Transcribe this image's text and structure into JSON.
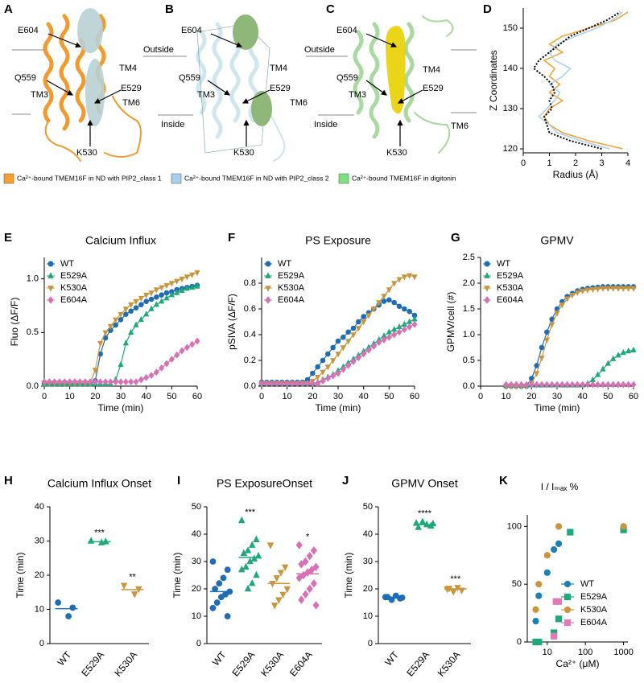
{
  "structures": [
    {
      "letter": "A",
      "labels": [
        "E604",
        "Q559",
        "TM3",
        "TM4",
        "E529",
        "TM6",
        "K530"
      ]
    },
    {
      "letter": "B",
      "labels": [
        "Outside",
        "E604",
        "TM4",
        "Q559",
        "TM3",
        "E529",
        "TM6",
        "Inside",
        "K530"
      ]
    },
    {
      "letter": "C",
      "labels": [
        "Outside",
        "E604",
        "TM4",
        "Q559",
        "TM3",
        "E529",
        "TM6",
        "Inside",
        "K530"
      ]
    }
  ],
  "structure_legend": [
    {
      "name": "Ca²⁺-bound TMEM16F in ND with PIP2_class 1",
      "color": "#f5a030"
    },
    {
      "name": "Ca²⁺-bound TMEM16F in ND with PIP2_class 2",
      "color": "#a8d0ec"
    },
    {
      "name": "Ca²⁺-bound TMEM16F in digitonin",
      "color": "#7fe07f"
    }
  ],
  "chart_data": [
    {
      "letter": "D",
      "type": "profile",
      "ylabel": "Z Coordinates",
      "xlabel": "Radius (Å)",
      "xlim": [
        0,
        4
      ],
      "xticks": [
        0,
        1,
        2,
        3,
        4
      ],
      "ylim": [
        119,
        155
      ],
      "yticks": [
        120,
        130,
        140,
        150
      ],
      "y": [
        120,
        122,
        124,
        126,
        128,
        130,
        132,
        134,
        136,
        138,
        140,
        142,
        144,
        146,
        148,
        150,
        152,
        154
      ],
      "series": [
        {
          "color": "#f5a030",
          "values": [
            3.8,
            2.5,
            1.5,
            1.0,
            0.8,
            1.0,
            1.5,
            1.0,
            1.4,
            1.0,
            1.2,
            0.8,
            1.5,
            1.0,
            1.5,
            2.5,
            3.5,
            4.0
          ]
        },
        {
          "color": "#a8d0ec",
          "values": [
            3.3,
            2.2,
            1.3,
            1.0,
            0.6,
            0.9,
            1.2,
            1.4,
            1.0,
            1.5,
            1.8,
            1.2,
            1.0,
            1.3,
            2.0,
            2.8,
            3.4,
            3.8
          ]
        },
        {
          "color": "#000000",
          "dash": true,
          "values": [
            3.0,
            1.8,
            1.0,
            0.9,
            0.8,
            1.1,
            1.0,
            1.2,
            1.1,
            0.8,
            0.4,
            0.6,
            1.0,
            1.4,
            1.8,
            2.5,
            3.2,
            3.7
          ]
        }
      ]
    },
    {
      "letter": "E",
      "type": "line",
      "title": "Calcium Influx",
      "ylabel": "Fluo (ΔF/F)",
      "xlabel": "Time (min)",
      "xlim": [
        0,
        60
      ],
      "xticks": [
        0,
        10,
        20,
        30,
        40,
        50,
        60
      ],
      "ylim": [
        0,
        1.2
      ],
      "yticks": [
        {
          "value": 0,
          "label": "0.0"
        },
        0.5,
        {
          "value": 1,
          "label": "1.0"
        }
      ],
      "legend": "upper left",
      "x": [
        0,
        2,
        4,
        6,
        8,
        10,
        12,
        14,
        16,
        18,
        20,
        22,
        24,
        26,
        28,
        30,
        32,
        34,
        36,
        38,
        40,
        42,
        44,
        46,
        48,
        50,
        52,
        54,
        56,
        58,
        60
      ],
      "series": [
        {
          "name": "WT",
          "color": "#1f6db5",
          "marker": "circle",
          "values": [
            0.02,
            0.02,
            0.02,
            0.02,
            0.02,
            0.02,
            0.02,
            0.02,
            0.02,
            0.02,
            0.05,
            0.3,
            0.45,
            0.52,
            0.57,
            0.62,
            0.67,
            0.7,
            0.73,
            0.76,
            0.79,
            0.81,
            0.83,
            0.85,
            0.87,
            0.88,
            0.9,
            0.91,
            0.92,
            0.93,
            0.94
          ]
        },
        {
          "name": "E529A",
          "color": "#1fa87a",
          "marker": "triangle-up",
          "values": [
            0.02,
            0.02,
            0.02,
            0.02,
            0.02,
            0.02,
            0.02,
            0.02,
            0.02,
            0.02,
            0.02,
            0.02,
            0.02,
            0.02,
            0.06,
            0.2,
            0.4,
            0.5,
            0.57,
            0.62,
            0.67,
            0.72,
            0.76,
            0.79,
            0.82,
            0.85,
            0.87,
            0.89,
            0.91,
            0.92,
            0.93
          ]
        },
        {
          "name": "K530A",
          "color": "#c9963f",
          "marker": "triangle-down",
          "values": [
            0.03,
            0.03,
            0.03,
            0.03,
            0.03,
            0.03,
            0.03,
            0.03,
            0.03,
            0.03,
            0.15,
            0.4,
            0.5,
            0.56,
            0.62,
            0.67,
            0.72,
            0.76,
            0.79,
            0.82,
            0.85,
            0.87,
            0.9,
            0.92,
            0.94,
            0.96,
            0.98,
            1.0,
            1.02,
            1.04,
            1.06
          ]
        },
        {
          "name": "E604A",
          "color": "#d770b5",
          "marker": "diamond",
          "values": [
            0.04,
            0.04,
            0.04,
            0.04,
            0.04,
            0.04,
            0.04,
            0.04,
            0.04,
            0.04,
            0.04,
            0.04,
            0.04,
            0.04,
            0.04,
            0.04,
            0.04,
            0.04,
            0.04,
            0.06,
            0.08,
            0.1,
            0.13,
            0.17,
            0.21,
            0.25,
            0.29,
            0.33,
            0.36,
            0.39,
            0.42
          ]
        }
      ]
    },
    {
      "letter": "F",
      "type": "line",
      "title": "PS Exposure",
      "ylabel": "pSIVA (ΔF/F)",
      "xlabel": "Time (min)",
      "xlim": [
        0,
        60
      ],
      "xticks": [
        0,
        10,
        20,
        30,
        40,
        50,
        60
      ],
      "ylim": [
        0,
        1.0
      ],
      "yticks": [
        {
          "value": 0,
          "label": "0.0"
        },
        0.2,
        0.4,
        0.6,
        0.8
      ],
      "legend": "upper left",
      "x": [
        0,
        2,
        4,
        6,
        8,
        10,
        12,
        14,
        16,
        18,
        20,
        22,
        24,
        26,
        28,
        30,
        32,
        34,
        36,
        38,
        40,
        42,
        44,
        46,
        48,
        50,
        52,
        54,
        56,
        58,
        60
      ],
      "series": [
        {
          "name": "WT",
          "color": "#1f6db5",
          "marker": "circle",
          "values": [
            0.03,
            0.03,
            0.03,
            0.03,
            0.03,
            0.03,
            0.03,
            0.03,
            0.03,
            0.05,
            0.1,
            0.15,
            0.2,
            0.25,
            0.3,
            0.35,
            0.38,
            0.42,
            0.45,
            0.5,
            0.54,
            0.57,
            0.6,
            0.63,
            0.66,
            0.67,
            0.65,
            0.62,
            0.6,
            0.58,
            0.55
          ]
        },
        {
          "name": "E529A",
          "color": "#1fa87a",
          "marker": "triangle-up",
          "values": [
            0.02,
            0.02,
            0.02,
            0.02,
            0.02,
            0.02,
            0.02,
            0.02,
            0.02,
            0.02,
            0.02,
            0.03,
            0.05,
            0.07,
            0.09,
            0.12,
            0.15,
            0.18,
            0.21,
            0.24,
            0.27,
            0.3,
            0.33,
            0.36,
            0.39,
            0.42,
            0.44,
            0.46,
            0.48,
            0.5,
            0.52
          ]
        },
        {
          "name": "K530A",
          "color": "#c9963f",
          "marker": "triangle-down",
          "values": [
            0.02,
            0.02,
            0.02,
            0.02,
            0.02,
            0.02,
            0.02,
            0.02,
            0.02,
            0.02,
            0.04,
            0.07,
            0.11,
            0.15,
            0.2,
            0.25,
            0.3,
            0.35,
            0.4,
            0.45,
            0.5,
            0.55,
            0.6,
            0.65,
            0.7,
            0.75,
            0.8,
            0.83,
            0.85,
            0.86,
            0.85
          ]
        },
        {
          "name": "E604A",
          "color": "#d770b5",
          "marker": "diamond",
          "values": [
            0.02,
            0.02,
            0.02,
            0.02,
            0.02,
            0.02,
            0.02,
            0.02,
            0.02,
            0.02,
            0.02,
            0.02,
            0.04,
            0.06,
            0.08,
            0.1,
            0.13,
            0.16,
            0.19,
            0.22,
            0.25,
            0.28,
            0.31,
            0.34,
            0.36,
            0.38,
            0.4,
            0.42,
            0.44,
            0.46,
            0.48
          ]
        }
      ]
    },
    {
      "letter": "G",
      "type": "line",
      "title": "GPMV",
      "ylabel": "GPMV/cell (#)",
      "xlabel": "Time (min)",
      "xlim": [
        0,
        60
      ],
      "xticks": [
        0,
        10,
        20,
        30,
        40,
        50,
        60
      ],
      "ylim": [
        0,
        2.5
      ],
      "yticks": [
        {
          "value": 0,
          "label": "0.0"
        },
        0.5,
        {
          "value": 1,
          "label": "1.0"
        },
        1.5,
        {
          "value": 2,
          "label": "2.0"
        },
        2.5
      ],
      "legend": "upper left",
      "x": [
        10,
        12,
        14,
        16,
        18,
        20,
        22,
        24,
        26,
        28,
        30,
        32,
        34,
        36,
        38,
        40,
        42,
        44,
        46,
        48,
        50,
        52,
        54,
        56,
        58,
        60
      ],
      "series": [
        {
          "name": "WT",
          "color": "#1f6db5",
          "marker": "circle",
          "values": [
            0,
            0,
            0,
            0,
            0,
            0.15,
            0.4,
            0.75,
            1.05,
            1.3,
            1.5,
            1.64,
            1.74,
            1.8,
            1.85,
            1.88,
            1.9,
            1.91,
            1.92,
            1.93,
            1.93,
            1.93,
            1.93,
            1.93,
            1.93,
            1.93
          ]
        },
        {
          "name": "E529A",
          "color": "#1fa87a",
          "marker": "triangle-up",
          "values": [
            0.02,
            0.02,
            0.02,
            0.02,
            0.02,
            0.02,
            0.02,
            0.02,
            0.02,
            0.02,
            0.02,
            0.02,
            0.02,
            0.02,
            0.02,
            0.02,
            0.05,
            0.12,
            0.22,
            0.33,
            0.44,
            0.53,
            0.6,
            0.65,
            0.68,
            0.7
          ]
        },
        {
          "name": "K530A",
          "color": "#c9963f",
          "marker": "triangle-down",
          "values": [
            0,
            0,
            0,
            0,
            0,
            0.05,
            0.25,
            0.55,
            0.9,
            1.2,
            1.42,
            1.58,
            1.7,
            1.77,
            1.82,
            1.85,
            1.87,
            1.88,
            1.89,
            1.9,
            1.9,
            1.9,
            1.9,
            1.9,
            1.9,
            1.9
          ]
        },
        {
          "name": "E604A",
          "color": "#d770b5",
          "marker": "diamond",
          "values": [
            0.03,
            0.03,
            0.03,
            0.03,
            0.03,
            0.03,
            0.03,
            0.03,
            0.03,
            0.03,
            0.03,
            0.03,
            0.03,
            0.03,
            0.03,
            0.03,
            0.03,
            0.03,
            0.03,
            0.03,
            0.03,
            0.03,
            0.03,
            0.03,
            0.03,
            0.03
          ]
        }
      ]
    },
    {
      "letter": "H",
      "type": "dot",
      "title": "Calcium Influx Onset",
      "ylabel": "Time (min)",
      "ylim": [
        0,
        40
      ],
      "yticks": [
        0,
        10,
        20,
        30,
        40
      ],
      "categories": [
        "WT",
        "E529A",
        "K530A"
      ],
      "colors": [
        "#1f6db5",
        "#1fa87a",
        "#c9963f"
      ],
      "markers": [
        "circle",
        "triangle-up",
        "triangle-down"
      ],
      "points": [
        [
          12,
          10.5,
          8
        ],
        [
          30,
          29.8,
          29.5
        ],
        [
          17,
          16,
          14.5
        ]
      ],
      "means": [
        10.2,
        29.8,
        15.8
      ],
      "annotations": [
        null,
        "***",
        "**"
      ]
    },
    {
      "letter": "I",
      "type": "dot",
      "title": "PS ExposureOnset",
      "ylabel": "Time (min)",
      "ylim": [
        0,
        50
      ],
      "yticks": [
        0,
        10,
        20,
        30,
        40,
        50
      ],
      "categories": [
        "WT",
        "E529A",
        "K530A",
        "E604A"
      ],
      "colors": [
        "#1f6db5",
        "#1fa87a",
        "#c9963f",
        "#d770b5"
      ],
      "markers": [
        "circle",
        "triangle-up",
        "triangle-down",
        "diamond"
      ],
      "points": [
        [
          30,
          27,
          24,
          22,
          20,
          19,
          18,
          17,
          15,
          13,
          10
        ],
        [
          45,
          38,
          36,
          34,
          33,
          32,
          31,
          30,
          28,
          27,
          25,
          22,
          20
        ],
        [
          36,
          28,
          26,
          24,
          22,
          20,
          18,
          16,
          14
        ],
        [
          36,
          34,
          32,
          30,
          29,
          28,
          27,
          26,
          25,
          24,
          22,
          20,
          18,
          16,
          14
        ]
      ],
      "means": [
        19,
        31.5,
        22,
        25.5
      ],
      "annotations": [
        null,
        "***",
        null,
        "*"
      ]
    },
    {
      "letter": "J",
      "type": "dot",
      "title": "GPMV Onset",
      "ylabel": "Time (min)",
      "ylim": [
        0,
        50
      ],
      "yticks": [
        0,
        10,
        20,
        30,
        40,
        50
      ],
      "categories": [
        "WT",
        "E529A",
        "K530A"
      ],
      "colors": [
        "#1f6db5",
        "#1fa87a",
        "#c9963f"
      ],
      "markers": [
        "circle",
        "triangle-up",
        "triangle-down"
      ],
      "points": [
        [
          17,
          16.5,
          17.5,
          16,
          17,
          16.8
        ],
        [
          44,
          43,
          43.5,
          44.5,
          42.5,
          43.8
        ],
        [
          20,
          19.5,
          20.5,
          19,
          20.2
        ]
      ],
      "means": [
        17,
        43.5,
        20
      ],
      "annotations": [
        null,
        "****",
        "***"
      ]
    },
    {
      "letter": "K",
      "type": "scatter",
      "ylabel": "I / Iₘₐₓ %",
      "xlabel": "Ca²⁺ (μM)",
      "xscale": "log",
      "xlim": [
        3,
        1300
      ],
      "xticks": [
        10,
        100,
        1000
      ],
      "ylim": [
        0,
        110
      ],
      "yticks": [
        0,
        50,
        100
      ],
      "legend": "lower right",
      "series": [
        {
          "name": "WT",
          "color": "#1f7fb5",
          "marker": "circle",
          "x": [
            5,
            6,
            10,
            15,
            20,
            1000
          ],
          "values": [
            18,
            40,
            60,
            80,
            85,
            100
          ]
        },
        {
          "name": "E529A",
          "color": "#1fa87a",
          "marker": "square",
          "x": [
            5,
            6,
            15,
            20,
            40,
            1000
          ],
          "values": [
            0,
            0,
            8,
            20,
            95,
            97
          ]
        },
        {
          "name": "K530A",
          "color": "#c9963f",
          "marker": "circle",
          "x": [
            5,
            6,
            10,
            20,
            1000
          ],
          "values": [
            28,
            50,
            75,
            100,
            100
          ]
        },
        {
          "name": "E604A",
          "color": "#e07ab8",
          "marker": "square",
          "x": [
            15,
            17,
            20
          ],
          "values": [
            5,
            35,
            35
          ]
        }
      ]
    }
  ]
}
